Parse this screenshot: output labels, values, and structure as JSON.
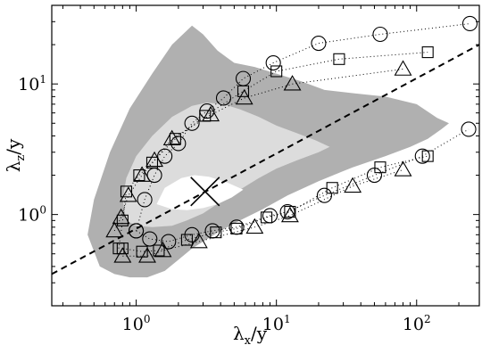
{
  "chart_data": {
    "type": "scatter",
    "xlabel": {
      "main": "λ",
      "sub": "x",
      "rest": "/y"
    },
    "ylabel": {
      "main": "λ",
      "sub": "z",
      "rest": "/y"
    },
    "x_scale": "log",
    "y_scale": "log",
    "xlim": [
      0.25,
      280
    ],
    "ylim": [
      0.2,
      40
    ],
    "x_ticks": [
      {
        "value": 1,
        "base": "10",
        "exp": "0"
      },
      {
        "value": 10,
        "base": "10",
        "exp": "1"
      },
      {
        "value": 100,
        "base": "10",
        "exp": "2"
      }
    ],
    "y_ticks": [
      {
        "value": 1,
        "base": "10",
        "exp": "0"
      },
      {
        "value": 10,
        "base": "10",
        "exp": "1"
      }
    ],
    "grid": false,
    "colors": {
      "outer_contour": "#b0b0b0",
      "inner_contour": "#dcdcdc",
      "core": "#ffffff",
      "markers": "#000000"
    },
    "contours": [
      {
        "level": "outer",
        "points": [
          [
            0.55,
            0.4
          ],
          [
            0.45,
            0.7
          ],
          [
            0.5,
            1.3
          ],
          [
            0.65,
            3
          ],
          [
            0.9,
            6.5
          ],
          [
            1.3,
            12
          ],
          [
            1.8,
            20
          ],
          [
            2.5,
            28
          ],
          [
            3,
            24
          ],
          [
            3.8,
            18
          ],
          [
            5,
            14.5
          ],
          [
            7,
            13.5
          ],
          [
            10,
            12
          ],
          [
            15,
            10.5
          ],
          [
            22,
            9
          ],
          [
            35,
            8.5
          ],
          [
            60,
            8
          ],
          [
            100,
            7
          ],
          [
            140,
            5.5
          ],
          [
            170,
            5
          ],
          [
            150,
            4.5
          ],
          [
            120,
            3.8
          ],
          [
            90,
            3.3
          ],
          [
            60,
            2.8
          ],
          [
            35,
            2.3
          ],
          [
            20,
            1.8
          ],
          [
            12,
            1.4
          ],
          [
            8,
            1.1
          ],
          [
            5.5,
            0.9
          ],
          [
            4,
            0.75
          ],
          [
            3,
            0.62
          ],
          [
            2.5,
            0.55
          ],
          [
            2,
            0.45
          ],
          [
            1.6,
            0.37
          ],
          [
            1.2,
            0.33
          ],
          [
            0.9,
            0.33
          ],
          [
            0.7,
            0.35
          ]
        ]
      },
      {
        "level": "inner",
        "points": [
          [
            0.85,
            0.9
          ],
          [
            0.8,
            1.3
          ],
          [
            0.85,
            1.9
          ],
          [
            1,
            2.8
          ],
          [
            1.3,
            4
          ],
          [
            1.8,
            5.6
          ],
          [
            2.5,
            6.8
          ],
          [
            3.2,
            7.2
          ],
          [
            4.2,
            7
          ],
          [
            5.5,
            6.4
          ],
          [
            7.5,
            5.6
          ],
          [
            10,
            4.8
          ],
          [
            14,
            4.2
          ],
          [
            19,
            3.7
          ],
          [
            24,
            3.3
          ],
          [
            20,
            3
          ],
          [
            14,
            2.6
          ],
          [
            10,
            2.25
          ],
          [
            7.5,
            1.9
          ],
          [
            5.5,
            1.55
          ],
          [
            4,
            1.25
          ],
          [
            3,
            1.02
          ],
          [
            2.3,
            0.9
          ],
          [
            1.8,
            0.82
          ],
          [
            1.3,
            0.8
          ],
          [
            1,
            0.82
          ]
        ]
      },
      {
        "level": "core",
        "points": [
          [
            1.4,
            1.2
          ],
          [
            1.6,
            1.6
          ],
          [
            2.1,
            1.9
          ],
          [
            2.6,
            2.0
          ],
          [
            3.3,
            1.95
          ],
          [
            4.5,
            1.75
          ],
          [
            5.8,
            1.55
          ],
          [
            4.8,
            1.35
          ],
          [
            3.8,
            1.2
          ],
          [
            3,
            1.12
          ],
          [
            2.3,
            1.08
          ],
          [
            1.8,
            1.1
          ]
        ]
      }
    ],
    "reference_line": {
      "style": "dashed",
      "points": [
        [
          0.25,
          0.35
        ],
        [
          280,
          20
        ]
      ]
    },
    "peak_marker": {
      "marker": "x",
      "x": 3.1,
      "y": 1.5
    },
    "series": [
      {
        "marker": "circle",
        "x": [
          1.0,
          1.15,
          1.35,
          1.6,
          2.0,
          2.5,
          3.2,
          4.2,
          5.8,
          9.5,
          20,
          55,
          240
        ],
        "y": [
          0.75,
          1.3,
          2.0,
          2.8,
          3.5,
          5.0,
          6.2,
          7.8,
          11,
          14.5,
          20.5,
          24,
          29
        ]
      },
      {
        "marker": "circle",
        "x": [
          1.0,
          1.25,
          1.7,
          2.5,
          3.5,
          5.2,
          9.0,
          12,
          22,
          50,
          110,
          235
        ],
        "y": [
          0.75,
          0.65,
          0.62,
          0.7,
          0.75,
          0.8,
          0.98,
          1.05,
          1.4,
          2.0,
          2.8,
          4.5
        ]
      },
      {
        "marker": "square",
        "x": [
          0.75,
          0.8,
          0.85,
          1.05,
          1.3,
          1.9,
          3.1,
          5.8,
          10,
          28,
          120
        ],
        "y": [
          0.55,
          0.9,
          1.5,
          2.0,
          2.5,
          3.8,
          5.7,
          8.8,
          12.5,
          15.5,
          17.5
        ]
      },
      {
        "marker": "square",
        "x": [
          0.8,
          1.1,
          1.45,
          2.3,
          3.7,
          5.2,
          8.5,
          12.5,
          25,
          55,
          120
        ],
        "y": [
          0.55,
          0.52,
          0.53,
          0.64,
          0.73,
          0.78,
          0.95,
          1.05,
          1.6,
          2.3,
          2.8
        ]
      },
      {
        "marker": "triangle",
        "x": [
          0.7,
          0.78,
          0.88,
          1.1,
          1.35,
          1.8,
          3.4,
          5.9,
          13,
          80
        ],
        "y": [
          0.75,
          0.95,
          1.4,
          2.0,
          2.6,
          3.8,
          5.8,
          7.8,
          10,
          13
        ]
      },
      {
        "marker": "triangle",
        "x": [
          0.8,
          1.2,
          1.55,
          2.8,
          7.0,
          12.5,
          35,
          80
        ],
        "y": [
          0.48,
          0.48,
          0.53,
          0.62,
          0.8,
          0.98,
          1.65,
          2.2
        ]
      }
    ]
  }
}
